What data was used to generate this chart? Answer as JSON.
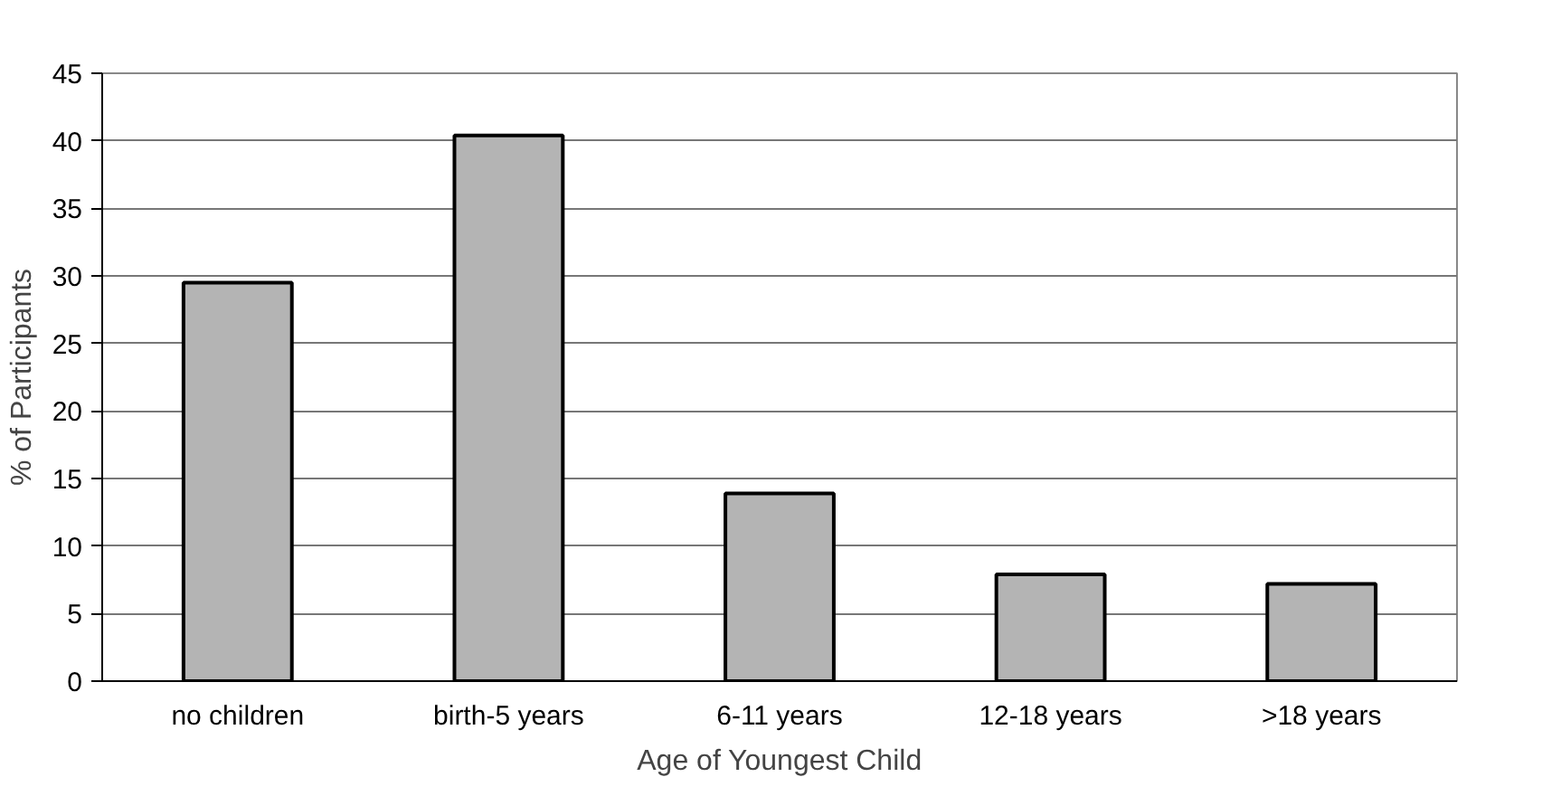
{
  "chart_data": {
    "type": "bar",
    "xlabel": "Age of Youngest Child",
    "ylabel": "% of Participants",
    "categories": [
      "no children",
      "birth-5 years",
      "6-11 years",
      "12-18 years",
      ">18 years"
    ],
    "values": [
      29.5,
      40.4,
      13.9,
      7.9,
      7.2
    ],
    "color": "#b4b4b4",
    "ylim": [
      0,
      45
    ],
    "yticks": [
      0,
      5,
      10,
      15,
      20,
      25,
      30,
      35,
      40,
      45
    ],
    "grid": "y"
  }
}
